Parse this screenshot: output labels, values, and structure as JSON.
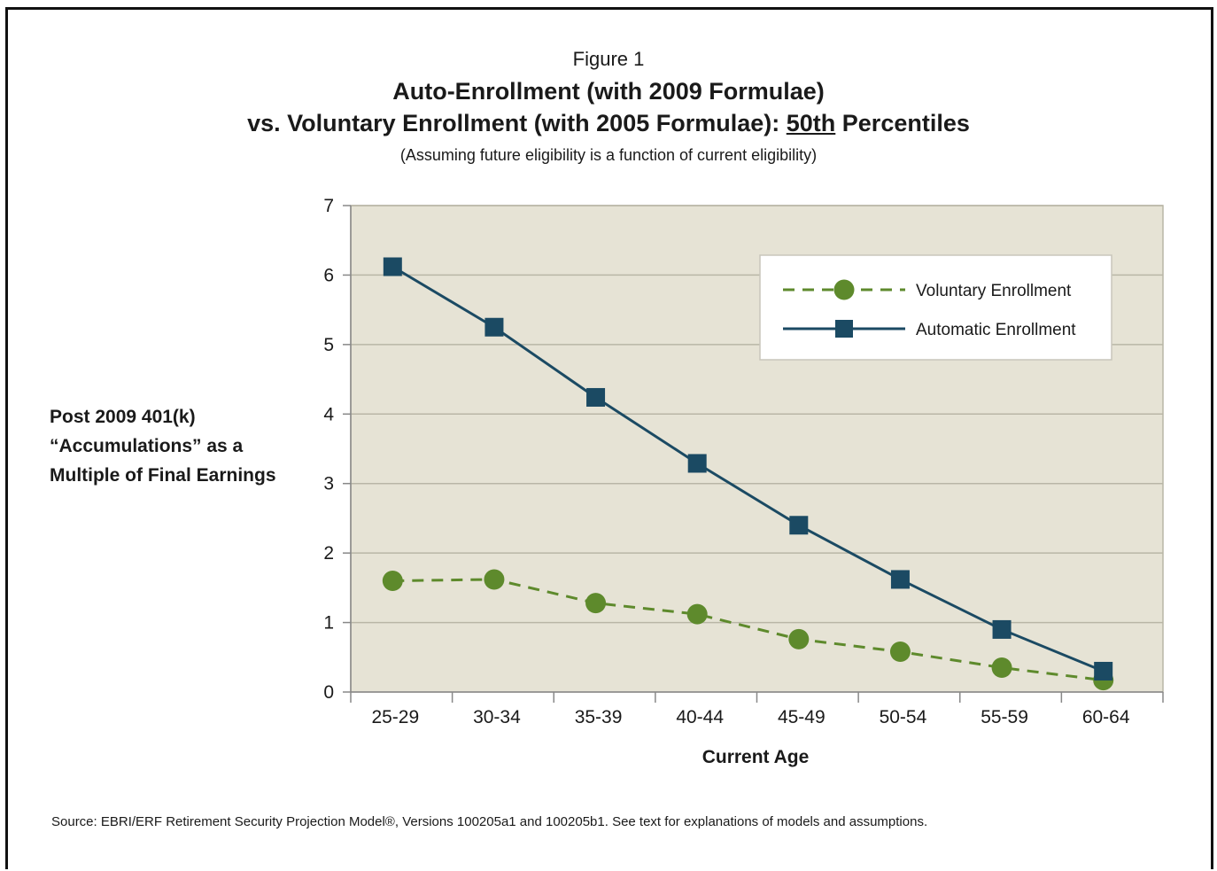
{
  "header": {
    "figure_label": "Figure 1",
    "title_line1": "Auto-Enrollment (with 2009 Formulae)",
    "title_line2_pre": "vs. Voluntary Enrollment (with 2005 Formulae): ",
    "title_line2_underlined": "50th",
    "title_line2_post": " Percentiles",
    "subtitle": "(Assuming future eligibility is a function of current eligibility)"
  },
  "source_note": "Source: EBRI/ERF Retirement Security Projection Model®, Versions 100205a1 and 100205b1. See text for explanations of models and assumptions.",
  "colors": {
    "plot_bg": "#e6e3d5",
    "grid": "#b9b6a6",
    "voluntary": "#5e8a2c",
    "automatic": "#1b4a63"
  },
  "chart_data": {
    "type": "line",
    "xlabel": "Current Age",
    "ylabel": "Post 2009 401(k)\n“Accumulations” as a\nMultiple of Final Earnings",
    "categories": [
      "25-29",
      "30-34",
      "35-39",
      "40-44",
      "45-49",
      "50-54",
      "55-59",
      "60-64"
    ],
    "ylim": [
      0,
      7
    ],
    "yticks": [
      "0",
      "1",
      "2",
      "3",
      "4",
      "5",
      "6",
      "7"
    ],
    "grid": true,
    "legend_position": "top-right",
    "series": [
      {
        "name": "Voluntary Enrollment",
        "marker": "circle",
        "line_style": "dashed",
        "color": "#5e8a2c",
        "values": [
          1.6,
          1.62,
          1.28,
          1.12,
          0.76,
          0.58,
          0.35,
          0.17
        ]
      },
      {
        "name": "Automatic Enrollment",
        "marker": "square",
        "line_style": "solid",
        "color": "#1b4a63",
        "values": [
          6.12,
          5.25,
          4.24,
          3.29,
          2.4,
          1.62,
          0.9,
          0.3
        ]
      }
    ]
  }
}
